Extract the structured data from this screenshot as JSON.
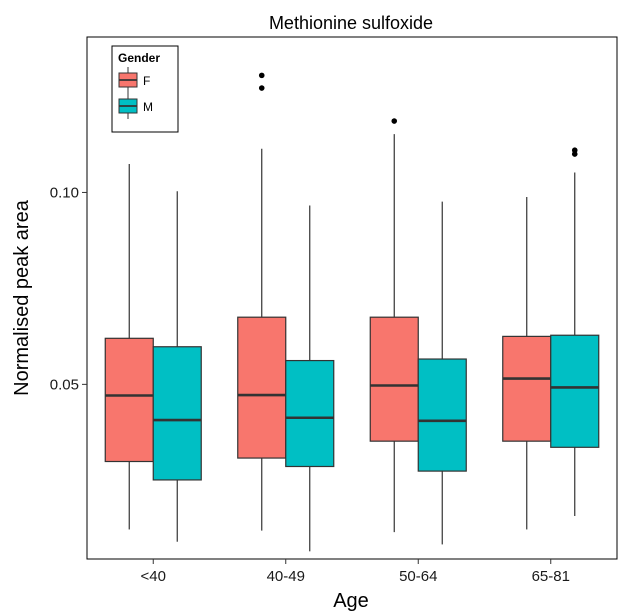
{
  "chart_data": {
    "type": "boxplot",
    "title": "Methionine sulfoxide",
    "xlabel": "Age",
    "ylabel": "Normalised peak area",
    "categories": [
      "<40",
      "40-49",
      "50-64",
      "65-81"
    ],
    "yticks": [
      0.05,
      0.1
    ],
    "ytick_labels": [
      "0.05",
      "0.10"
    ],
    "ylim": [
      0.0045,
      0.1405
    ],
    "grid": false,
    "legend": {
      "title": "Gender",
      "position": "top-left inside"
    },
    "series": [
      {
        "name": "F",
        "color": "#F8766D",
        "boxes": [
          {
            "min": 0.0122,
            "q1": 0.0299,
            "median": 0.0471,
            "q3": 0.062,
            "max": 0.1074,
            "outliers": []
          },
          {
            "min": 0.0119,
            "q1": 0.0308,
            "median": 0.0472,
            "q3": 0.0675,
            "max": 0.1114,
            "outliers": [
              0.1272,
              0.1305
            ]
          },
          {
            "min": 0.0115,
            "q1": 0.0352,
            "median": 0.0497,
            "q3": 0.0675,
            "max": 0.1152,
            "outliers": [
              0.1186
            ]
          },
          {
            "min": 0.0122,
            "q1": 0.0352,
            "median": 0.0515,
            "q3": 0.0625,
            "max": 0.0988,
            "outliers": []
          }
        ]
      },
      {
        "name": "M",
        "color": "#00BFC4",
        "boxes": [
          {
            "min": 0.009,
            "q1": 0.0251,
            "median": 0.0407,
            "q3": 0.0598,
            "max": 0.1003,
            "outliers": []
          },
          {
            "min": 0.0065,
            "q1": 0.0286,
            "median": 0.0413,
            "q3": 0.0562,
            "max": 0.0966,
            "outliers": []
          },
          {
            "min": 0.0083,
            "q1": 0.0274,
            "median": 0.0405,
            "q3": 0.0566,
            "max": 0.0976,
            "outliers": []
          },
          {
            "min": 0.0157,
            "q1": 0.0336,
            "median": 0.0492,
            "q3": 0.0628,
            "max": 0.1052,
            "outliers": [
              0.11,
              0.111
            ]
          }
        ]
      }
    ]
  }
}
